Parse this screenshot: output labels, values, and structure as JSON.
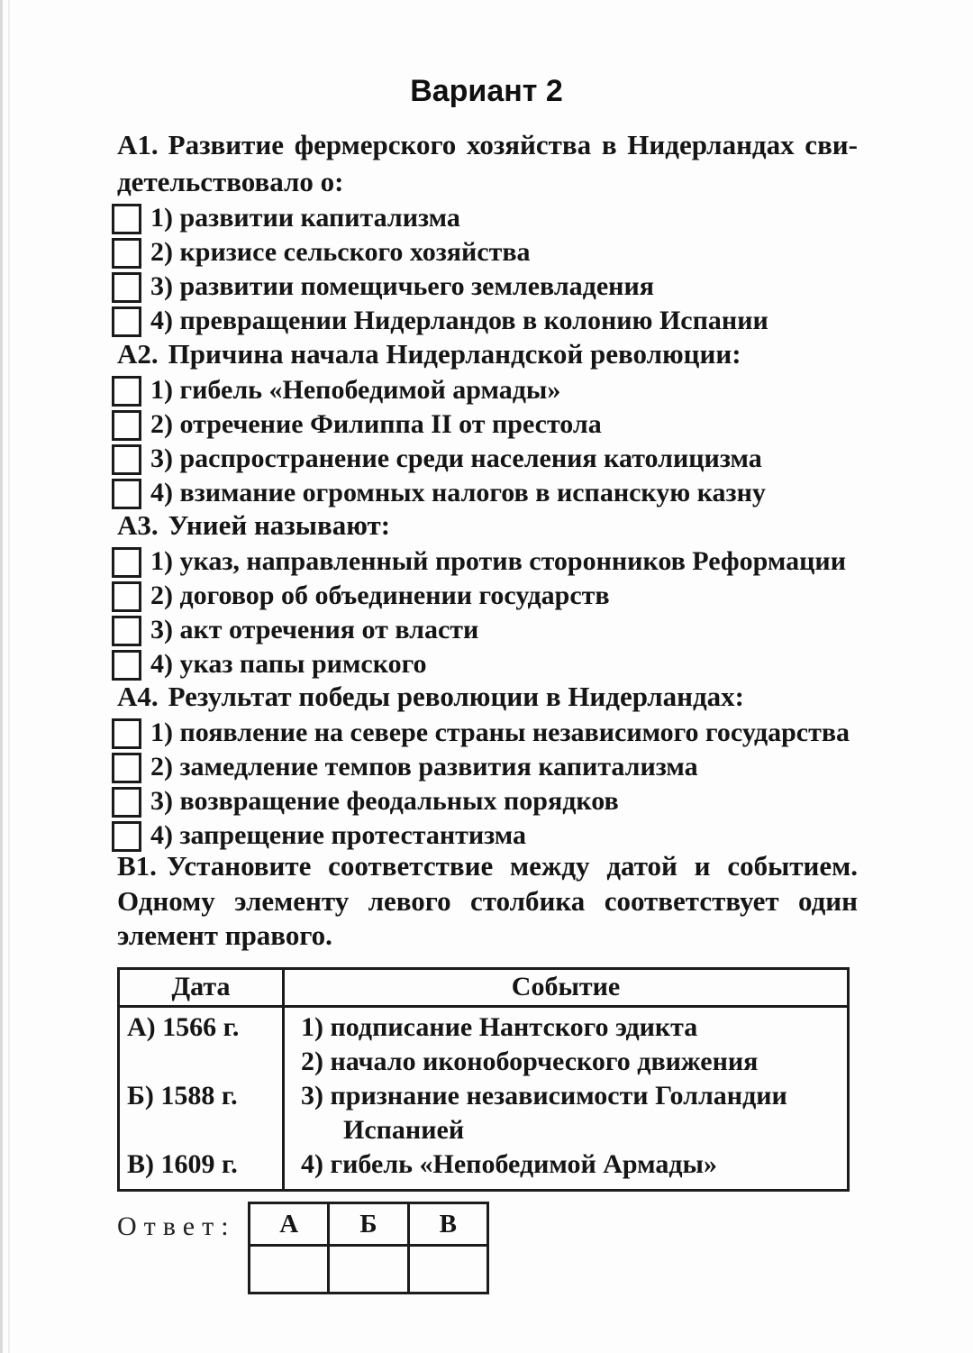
{
  "page": {
    "title": "Вариант 2"
  },
  "questions": [
    {
      "num": "А1.",
      "lines": [
        "Развитие фермерского хозяйства в Нидерландах сви-",
        "детельствовало о:"
      ],
      "options": [
        "1) развитии капитализма",
        "2) кризисе сельского хозяйства",
        "3) развитии помещичьего землевладения",
        "4) превращении Нидерландов в колонию Испании"
      ]
    },
    {
      "num": "А2.",
      "lines": [
        "Причина начала Нидерландской революции:"
      ],
      "options": [
        "1) гибель «Непобедимой армады»",
        "2) отречение Филиппа II от престола",
        "3) распространение среди населения католицизма",
        "4) взимание огромных налогов в испанскую казну"
      ]
    },
    {
      "num": "А3.",
      "lines": [
        "Унией называют:"
      ],
      "options": [
        "1) указ, направленный против сторонников Реформации",
        "2) договор об объединении государств",
        "3) акт отречения от власти",
        "4) указ папы римского"
      ]
    },
    {
      "num": "А4.",
      "lines": [
        "Результат победы революции в Нидерландах:"
      ],
      "options": [
        "1) появление на севере страны независимого государства",
        "2) замедление темпов развития капитализма",
        "3) возвращение феодальных порядков",
        "4) запрещение протестантизма"
      ]
    }
  ],
  "b1": {
    "num": "В1.",
    "lines": [
      "Установите соответствие между датой и событием.",
      "Одному элементу левого столбика соответствует один",
      "элемент правого."
    ]
  },
  "match_table": {
    "headers": [
      "Дата",
      "Событие"
    ],
    "dates": [
      "А) 1566 г.",
      "Б) 1588 г.",
      "В) 1609 г."
    ],
    "event_lines": [
      "1) подписание Нантского эдикта",
      "2) начало иконоборческого движения",
      "3) признание независимости Голландии",
      "Испанией",
      "4) гибель «Непобедимой Армады»"
    ]
  },
  "answer": {
    "label": "Ответ:",
    "columns": [
      "А",
      "Б",
      "В"
    ],
    "values": [
      "",
      "",
      ""
    ]
  }
}
